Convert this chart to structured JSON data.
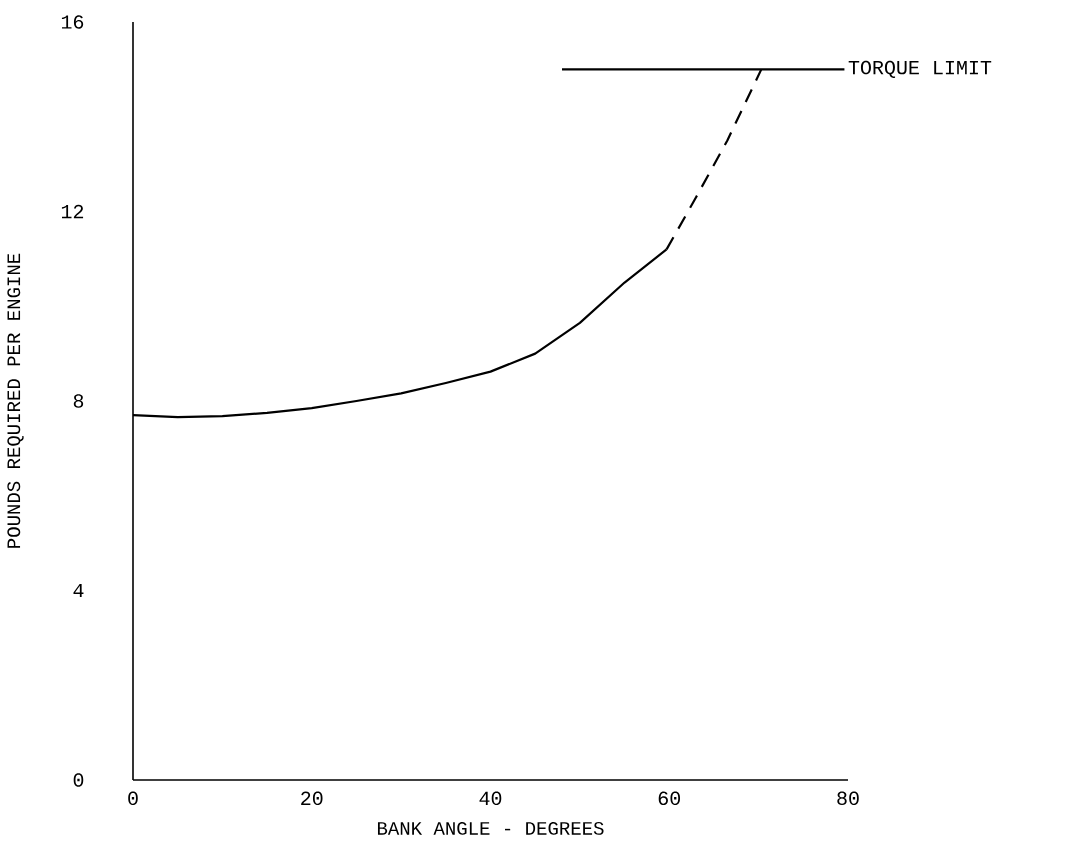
{
  "chart_data": {
    "type": "line",
    "xlabel": "BANK ANGLE - DEGREES",
    "ylabel": "POUNDS REQUIRED PER ENGINE",
    "xlim": [
      0,
      80
    ],
    "ylim": [
      0,
      16
    ],
    "xticks": [
      0,
      20,
      40,
      60,
      80
    ],
    "yticks": [
      0,
      4,
      8,
      12,
      16
    ],
    "grid": false,
    "series": [
      {
        "color": "#000000",
        "line_style": "solid",
        "x": [
          0,
          5,
          10,
          15,
          20,
          25,
          30,
          35,
          40,
          45,
          50,
          55,
          59.7
        ],
        "values": [
          7.7,
          7.66,
          7.68,
          7.75,
          7.85,
          8.0,
          8.16,
          8.38,
          8.62,
          9.0,
          9.65,
          10.5,
          11.2
        ]
      },
      {
        "color": "#000000",
        "line_style": "dashed",
        "x": [
          59.7,
          63,
          66.5,
          70.3
        ],
        "values": [
          11.2,
          12.3,
          13.5,
          15.0
        ]
      },
      {
        "name": "TORQUE LIMIT",
        "color": "#000000",
        "line_style": "solid",
        "x": [
          48,
          79.6
        ],
        "values": [
          15.0,
          15.0
        ]
      }
    ]
  }
}
